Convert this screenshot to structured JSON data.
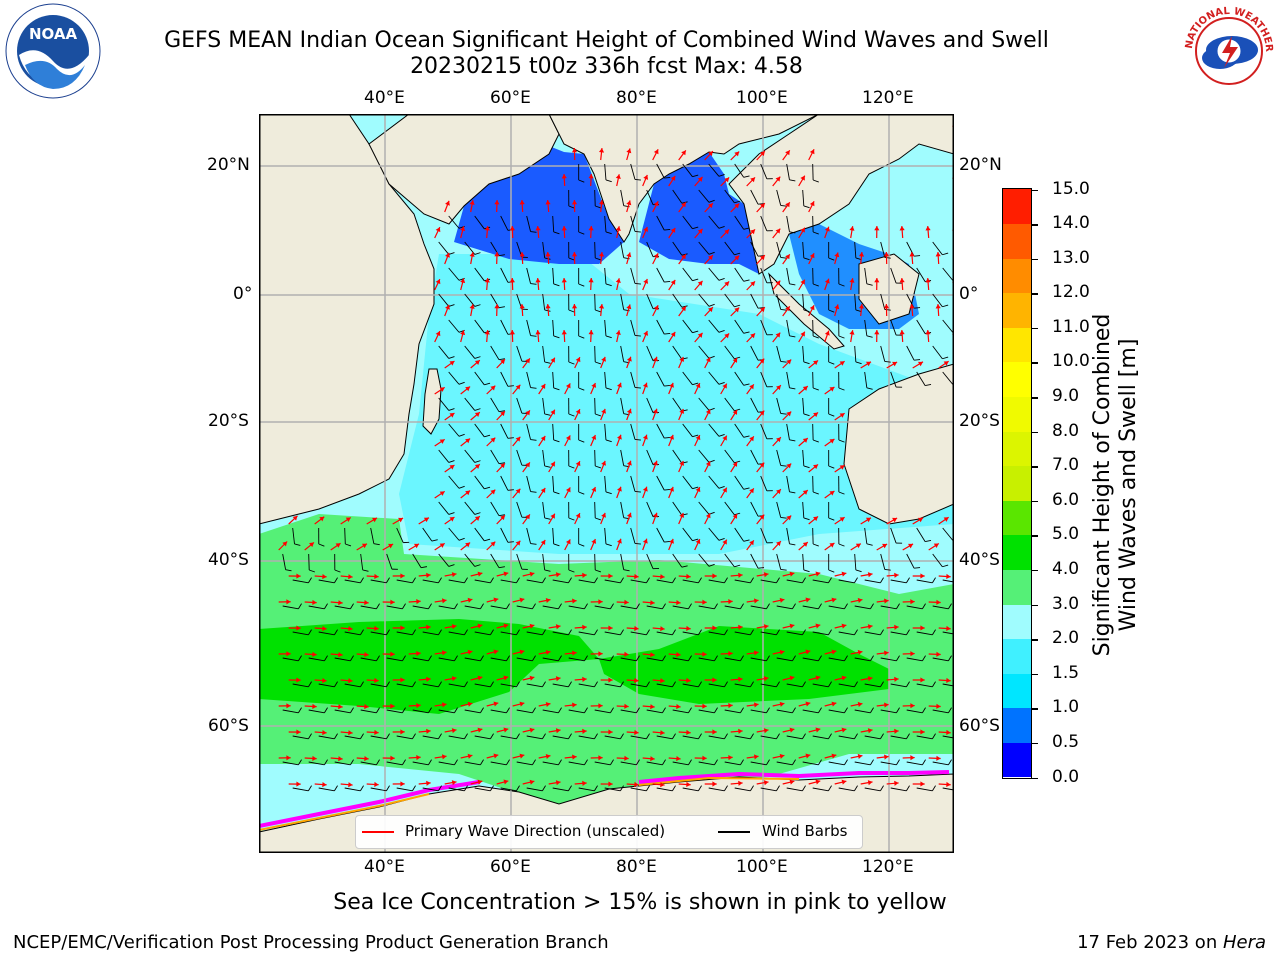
{
  "title": {
    "line1": "GEFS MEAN Indian Ocean Significant Height of Combined Wind Waves and Swell",
    "line2": "20230215 t00z 336h fcst   Max: 4.58"
  },
  "map": {
    "lon_ticks_top": [
      "40°E",
      "60°E",
      "80°E",
      "100°E",
      "120°E"
    ],
    "lon_ticks_bottom": [
      "40°E",
      "60°E",
      "80°E",
      "100°E",
      "120°E"
    ],
    "lat_ticks_left": [
      "20°N",
      "0°",
      "20°S",
      "40°S",
      "60°S"
    ],
    "lat_ticks_right": [
      "20°N",
      "0°",
      "20°S",
      "40°S",
      "60°S"
    ],
    "land_color": "#efecdc",
    "grid_color": "#b0b0b0",
    "wave_arrow_color": "#ff0000",
    "wind_barb_color": "#000000",
    "sea_ice_colors": [
      "#ff00ff",
      "#ff80ff",
      "#ffa500",
      "#ffff00"
    ]
  },
  "legend": {
    "wave_label": "Primary Wave Direction (unscaled)",
    "wind_label": "Wind Barbs"
  },
  "colorbar": {
    "title_line1": "Significant Height of Combined",
    "title_line2": "Wind Waves and Swell [m]",
    "ticks": [
      "0.0",
      "0.5",
      "1.0",
      "1.5",
      "2.0",
      "3.0",
      "4.0",
      "5.0",
      "6.0",
      "7.0",
      "8.0",
      "9.0",
      "10.0",
      "11.0",
      "12.0",
      "13.0",
      "14.0",
      "15.0"
    ],
    "colors": [
      "#0000ff",
      "#0073ff",
      "#00e6ff",
      "#40f0ff",
      "#a0fcfe",
      "#55f077",
      "#00e100",
      "#5ae600",
      "#c8f000",
      "#dcf500",
      "#f0fa00",
      "#ffff00",
      "#ffe600",
      "#ffb400",
      "#ff8c00",
      "#ff5a00",
      "#ff1e00"
    ]
  },
  "caption": "Sea Ice Concentration > 15% is shown in pink to yellow",
  "footer": {
    "left": "NCEP/EMC/Verification Post Processing Product Generation Branch",
    "right_prefix": "17 Feb 2023 on ",
    "right_host": "Hera"
  },
  "logos": {
    "noaa_text": "NOAA",
    "nws_text": "NATIONAL WEATHER SERVICE"
  }
}
